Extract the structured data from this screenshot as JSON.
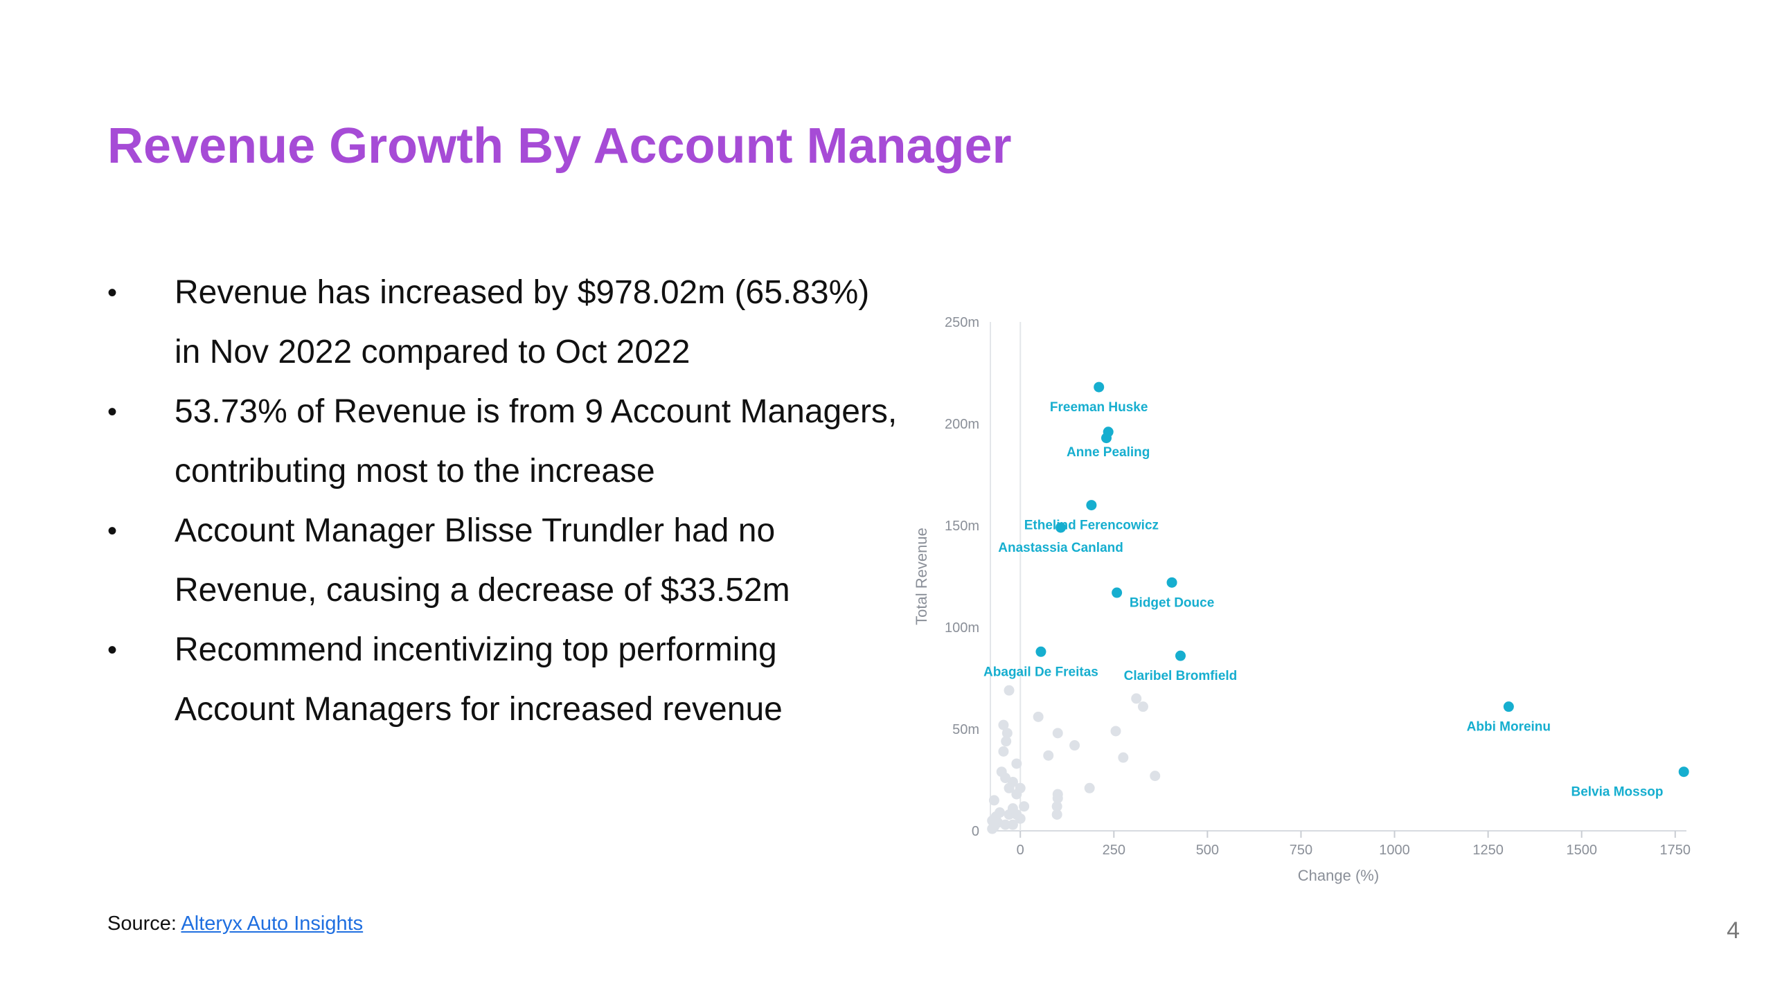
{
  "slide": {
    "title": "Revenue Growth By Account Manager",
    "bullets": [
      "Revenue has increased by $978.02m (65.83%) in Nov 2022 compared to Oct 2022",
      "53.73% of Revenue is from 9 Account Managers, contributing most to the increase",
      "Account Manager Blisse Trundler had no Revenue, causing a decrease of $33.52m",
      "Recommend incentivizing top performing Account Managers for increased revenue"
    ],
    "bullet_marker": "•",
    "source_label": "Source: ",
    "source_link": "Alteryx Auto Insights",
    "page_number": "4"
  },
  "colors": {
    "title": "#A64BD6",
    "highlight_point": "#16AECF",
    "other_point": "#DDE1E7",
    "link": "#1F6FE0"
  },
  "chart_data": {
    "type": "scatter",
    "xlabel": "Change (%)",
    "ylabel": "Total Revenue",
    "xlim": [
      -80,
      1780
    ],
    "ylim": [
      0,
      250
    ],
    "x_ticks": [
      0,
      250,
      500,
      750,
      1000,
      1250,
      1500,
      1750
    ],
    "x_tick_labels": [
      "0",
      "250",
      "500",
      "750",
      "1000",
      "1250",
      "1500",
      "1750"
    ],
    "y_ticks": [
      0,
      50,
      100,
      150,
      200,
      250
    ],
    "y_tick_labels": [
      "0",
      "50m",
      "100m",
      "150m",
      "200m",
      "250m"
    ],
    "grid": false,
    "zero_line_x": 0,
    "highlighted": [
      {
        "name": "Freeman Huske",
        "x": 210,
        "y": 218
      },
      {
        "name": "Anne Pealing",
        "x": 235,
        "y": 196
      },
      {
        "name": "",
        "x": 230,
        "y": 193
      },
      {
        "name": "Ethelind Ferencowicz",
        "x": 190,
        "y": 160
      },
      {
        "name": "Anastassia Canland",
        "x": 108,
        "y": 149
      },
      {
        "name": "Bidget Douce",
        "x": 405,
        "y": 122
      },
      {
        "name": "",
        "x": 258,
        "y": 117
      },
      {
        "name": "Abagail De Freitas",
        "x": 55,
        "y": 88
      },
      {
        "name": "Claribel Bromfield",
        "x": 428,
        "y": 86
      },
      {
        "name": "Abbi Moreinu",
        "x": 1305,
        "y": 61
      },
      {
        "name": "Belvia Mossop",
        "x": 1773,
        "y": 29
      }
    ],
    "others": [
      {
        "x": -30,
        "y": 69
      },
      {
        "x": 48,
        "y": 56
      },
      {
        "x": -45,
        "y": 52
      },
      {
        "x": -35,
        "y": 48
      },
      {
        "x": -38,
        "y": 44
      },
      {
        "x": -45,
        "y": 39
      },
      {
        "x": 100,
        "y": 48
      },
      {
        "x": 145,
        "y": 42
      },
      {
        "x": 255,
        "y": 49
      },
      {
        "x": 310,
        "y": 65
      },
      {
        "x": 328,
        "y": 61
      },
      {
        "x": 75,
        "y": 37
      },
      {
        "x": -10,
        "y": 33
      },
      {
        "x": -50,
        "y": 29
      },
      {
        "x": -40,
        "y": 26
      },
      {
        "x": -20,
        "y": 24
      },
      {
        "x": -30,
        "y": 21
      },
      {
        "x": 0,
        "y": 21
      },
      {
        "x": -10,
        "y": 18
      },
      {
        "x": 100,
        "y": 18
      },
      {
        "x": 100,
        "y": 16
      },
      {
        "x": -70,
        "y": 15
      },
      {
        "x": 10,
        "y": 12
      },
      {
        "x": -20,
        "y": 11
      },
      {
        "x": 98,
        "y": 12
      },
      {
        "x": -55,
        "y": 9
      },
      {
        "x": -30,
        "y": 8
      },
      {
        "x": -10,
        "y": 8
      },
      {
        "x": -65,
        "y": 7
      },
      {
        "x": -75,
        "y": 5
      },
      {
        "x": -60,
        "y": 4
      },
      {
        "x": -70,
        "y": 2
      },
      {
        "x": -40,
        "y": 3
      },
      {
        "x": -20,
        "y": 3
      },
      {
        "x": -75,
        "y": 1
      },
      {
        "x": 185,
        "y": 21
      },
      {
        "x": 275,
        "y": 36
      },
      {
        "x": 360,
        "y": 27
      },
      {
        "x": 98,
        "y": 8
      },
      {
        "x": 0,
        "y": 6
      }
    ]
  }
}
